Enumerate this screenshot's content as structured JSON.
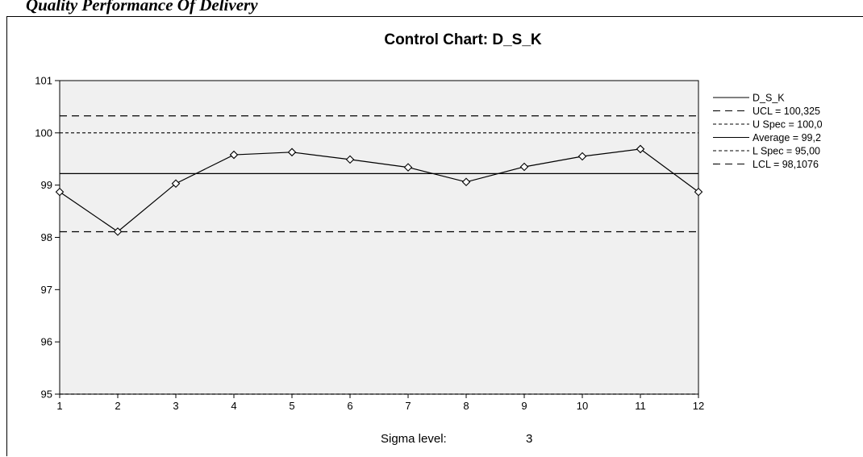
{
  "document": {
    "caption": "Quality Performance Of Delivery"
  },
  "chart_data": {
    "type": "line",
    "title": "Control Chart: D_S_K",
    "x": [
      1,
      2,
      3,
      4,
      5,
      6,
      7,
      8,
      9,
      10,
      11,
      12
    ],
    "series": [
      {
        "name": "D_S_K",
        "values": [
          98.87,
          98.11,
          99.03,
          99.58,
          99.63,
          99.49,
          99.34,
          99.06,
          99.35,
          99.55,
          99.69,
          98.87
        ],
        "color": "#000000"
      }
    ],
    "reference_lines": [
      {
        "key": "ucl",
        "label": "UCL = 100,325",
        "value": 100.325,
        "style": "long-dash"
      },
      {
        "key": "uspec",
        "label": "U Spec = 100,0",
        "value": 100.0,
        "style": "short-dash"
      },
      {
        "key": "average",
        "label": "Average = 99,2",
        "value": 99.22,
        "style": "solid"
      },
      {
        "key": "lspec",
        "label": "L Spec = 95,00",
        "value": 95.0,
        "style": "short-dash"
      },
      {
        "key": "lcl",
        "label": "LCL = 98,1076",
        "value": 98.1076,
        "style": "long-dash"
      }
    ],
    "xlim": [
      1,
      12
    ],
    "ylim": [
      95,
      101
    ],
    "x_ticks": [
      "1",
      "2",
      "3",
      "4",
      "5",
      "6",
      "7",
      "8",
      "9",
      "10",
      "11",
      "12"
    ],
    "y_ticks": [
      "95",
      "96",
      "97",
      "98",
      "99",
      "100",
      "101"
    ],
    "xlabel": "",
    "ylabel": "",
    "grid": false,
    "legend": "right",
    "plot_background": "#f0f0f0",
    "annotation": {
      "label": "Sigma level:",
      "value": "3"
    }
  }
}
